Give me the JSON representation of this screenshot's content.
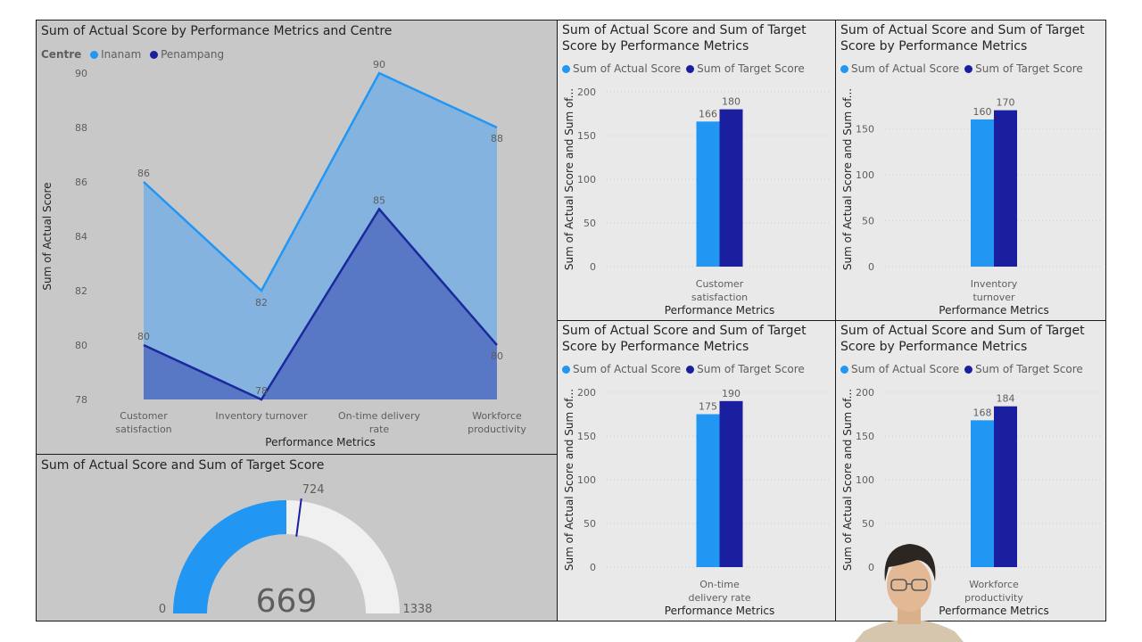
{
  "colors": {
    "actual": "#2196f3",
    "target": "#1a1fa0",
    "inanam_line": "#2196f3",
    "inanam_fill": "#85b3e0",
    "penampang_line": "#1a2a9c",
    "penampang_fill": "#5877c4",
    "gauge_empty": "#f0f0f0",
    "panel_bg": "#c8c8c8",
    "panel_bg_light": "#e9e9e9"
  },
  "area_chart": {
    "title": "Sum of Actual Score by Performance Metrics and Centre",
    "legend_label": "Centre",
    "xlabel": "Performance Metrics",
    "ylabel": "Sum of Actual Score"
  },
  "gauge": {
    "title": "Sum of Actual Score and Sum of Target Score",
    "value": 669,
    "value_label": "669",
    "min": 0,
    "min_label": "0",
    "max": 1338,
    "max_label": "1338",
    "target": 724,
    "target_label": "724"
  },
  "bar_common": {
    "title_line1": "Sum of Actual Score and Sum of Target",
    "title_line2": "Score by Performance Metrics",
    "ylabel": "Sum of Actual Score and Sum of...",
    "xlabel": "Performance Metrics"
  },
  "chart_data": [
    {
      "type": "area",
      "title": "Sum of Actual Score by Performance Metrics and Centre",
      "xlabel": "Performance Metrics",
      "ylabel": "Sum of Actual Score",
      "categories": [
        [
          "Customer",
          "satisfaction"
        ],
        [
          "Inventory turnover"
        ],
        [
          "On-time delivery",
          "rate"
        ],
        [
          "Workforce",
          "productivity"
        ]
      ],
      "yticks": [
        78,
        80,
        82,
        84,
        86,
        88,
        90
      ],
      "ylim": [
        78,
        90
      ],
      "grid": false,
      "series": [
        {
          "name": "Inanam",
          "values": [
            86,
            82,
            90,
            88
          ]
        },
        {
          "name": "Penampang",
          "values": [
            80,
            78,
            85,
            80
          ]
        }
      ]
    },
    {
      "type": "bar",
      "categories": [
        [
          "Customer",
          "satisfaction"
        ]
      ],
      "yticks": [
        0,
        50,
        100,
        150,
        200
      ],
      "ylim": [
        0,
        200
      ],
      "series": [
        {
          "name": "Sum of Actual Score",
          "values": [
            166
          ]
        },
        {
          "name": "Sum of Target Score",
          "values": [
            180
          ]
        }
      ]
    },
    {
      "type": "bar",
      "categories": [
        [
          "Inventory",
          "turnover"
        ]
      ],
      "yticks": [
        0,
        50,
        100,
        150
      ],
      "ylim": [
        0,
        190
      ],
      "series": [
        {
          "name": "Sum of Actual Score",
          "values": [
            160
          ]
        },
        {
          "name": "Sum of Target Score",
          "values": [
            170
          ]
        }
      ]
    },
    {
      "type": "bar",
      "categories": [
        [
          "On-time",
          "delivery rate"
        ]
      ],
      "yticks": [
        0,
        50,
        100,
        150,
        200
      ],
      "ylim": [
        0,
        200
      ],
      "series": [
        {
          "name": "Sum of Actual Score",
          "values": [
            175
          ]
        },
        {
          "name": "Sum of Target Score",
          "values": [
            190
          ]
        }
      ]
    },
    {
      "type": "bar",
      "categories": [
        [
          "Workforce",
          "productivity"
        ]
      ],
      "yticks": [
        0,
        50,
        100,
        150,
        200
      ],
      "ylim": [
        0,
        200
      ],
      "series": [
        {
          "name": "Sum of Actual Score",
          "values": [
            168
          ]
        },
        {
          "name": "Sum of Target Score",
          "values": [
            184
          ]
        }
      ]
    }
  ]
}
